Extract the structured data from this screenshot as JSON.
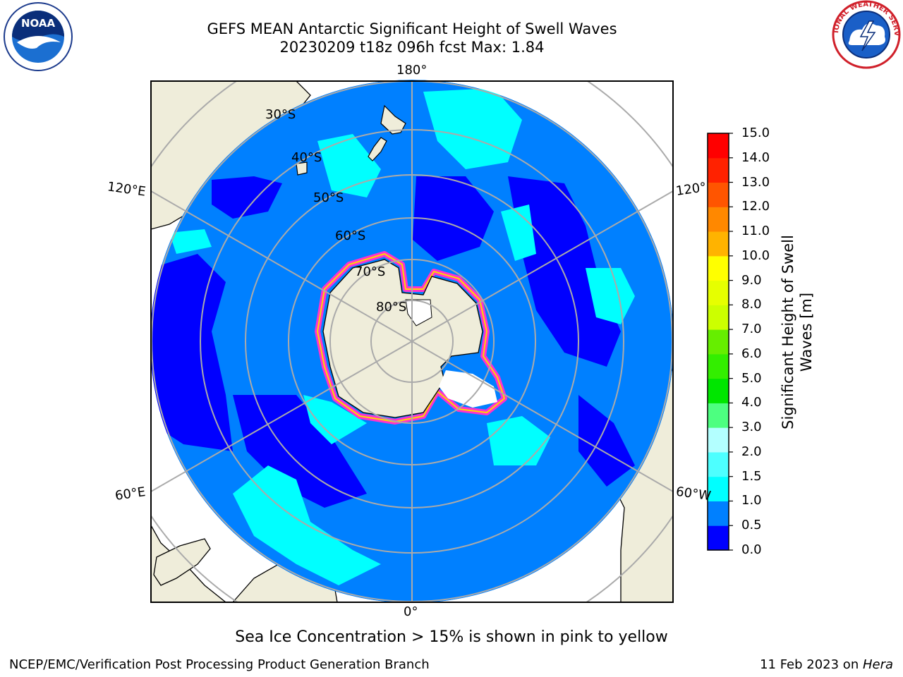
{
  "header": {
    "title": "GEFS MEAN Antarctic Significant Height of Swell Waves",
    "subtitle": "20230209 t18z 096h fcst   Max: 1.84"
  },
  "logos": {
    "left": {
      "name": "noaa-logo",
      "text": "NOAA"
    },
    "right": {
      "name": "national-weather-service-logo",
      "text": "NATIONAL WEATHER SERVICE"
    }
  },
  "map": {
    "projection": "south-polar-stereographic",
    "longitude_labels": {
      "top": "180°",
      "bottom": "0°",
      "left_upper": "120°E",
      "left_lower": "60°E",
      "right_upper": "120°",
      "right_lower": "60°W"
    },
    "latitude_labels": [
      "30°S",
      "40°S",
      "50°S",
      "60°S",
      "70°S",
      "80°S"
    ],
    "colors": {
      "land": "#efedda",
      "ocean_low": "#0000ff",
      "ocean_mid": "#0080ff",
      "ocean_high": "#00ffff",
      "sea_ice": "#ff33cc",
      "grid": "#aaaaaa"
    }
  },
  "colorbar": {
    "label": "Significant Height of Swell Waves [m]",
    "label_line1": "Significant Height of Swell",
    "label_line2": "Waves [m]",
    "ticks": [
      "15.0",
      "14.0",
      "13.0",
      "12.0",
      "11.0",
      "10.0",
      "9.0",
      "8.0",
      "7.0",
      "6.0",
      "5.0",
      "4.0",
      "3.0",
      "2.0",
      "1.5",
      "1.0",
      "0.5",
      "0.0"
    ],
    "bands": [
      "#0000ff",
      "#0080ff",
      "#00ffff",
      "#4dffff",
      "#80ffff",
      "#b3ffff",
      "#4dff80",
      "#00e600",
      "#33ee00",
      "#66ee00",
      "#ccff00",
      "#e6ff00",
      "#ffff00",
      "#ffee00",
      "#ffb300",
      "#ff8800",
      "#ff5500",
      "#ff2200",
      "#ff0000"
    ]
  },
  "note": "Sea Ice Concentration > 15% is shown in pink to yellow",
  "footer": {
    "left": "NCEP/EMC/Verification Post Processing Product Generation Branch",
    "right_date": "11 Feb 2023 on ",
    "right_host": "Hera"
  }
}
